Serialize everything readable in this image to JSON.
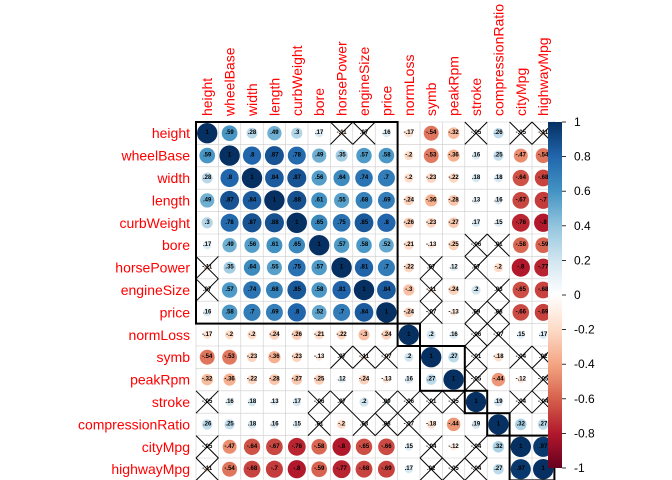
{
  "chart_data": {
    "type": "heatmap",
    "variables": [
      "height",
      "wheelBase",
      "width",
      "length",
      "curbWeight",
      "bore",
      "horsePower",
      "engineSize",
      "price",
      "normLoss",
      "symb",
      "peakRpm",
      "stroke",
      "compressionRatio",
      "cityMpg",
      "highwayMpg"
    ],
    "matrix": [
      [
        1,
        0.59,
        0.28,
        0.49,
        0.3,
        0.17,
        -0.11,
        0.07,
        0.16,
        -0.17,
        -0.54,
        -0.32,
        -0.05,
        0.26,
        -0.05,
        -0.11
      ],
      [
        0.59,
        1,
        0.8,
        0.87,
        0.78,
        0.49,
        0.35,
        0.57,
        0.58,
        -0.2,
        -0.53,
        -0.36,
        0.16,
        0.25,
        -0.47,
        -0.54
      ],
      [
        0.28,
        0.8,
        1,
        0.84,
        0.87,
        0.56,
        0.64,
        0.74,
        0.7,
        -0.2,
        -0.23,
        -0.22,
        0.18,
        0.18,
        -0.64,
        -0.68
      ],
      [
        0.49,
        0.87,
        0.84,
        1,
        0.88,
        0.61,
        0.55,
        0.68,
        0.69,
        -0.24,
        -0.36,
        -0.28,
        0.13,
        0.16,
        -0.67,
        -0.7
      ],
      [
        0.3,
        0.78,
        0.87,
        0.88,
        1,
        0.65,
        0.75,
        0.85,
        0.8,
        -0.26,
        -0.23,
        -0.27,
        0.17,
        0.15,
        -0.76,
        -0.8
      ],
      [
        0.17,
        0.49,
        0.56,
        0.61,
        0.65,
        1,
        0.57,
        0.58,
        0.52,
        -0.21,
        -0.13,
        -0.25,
        -0.06,
        0.01,
        -0.58,
        -0.59
      ],
      [
        -0.11,
        0.35,
        0.64,
        0.55,
        0.75,
        0.57,
        1,
        0.81,
        0.7,
        -0.22,
        0.07,
        0.12,
        0.07,
        -0.2,
        -0.8,
        -0.77
      ],
      [
        0.07,
        0.57,
        0.74,
        0.68,
        0.85,
        0.58,
        0.81,
        1,
        0.84,
        -0.3,
        -0.11,
        -0.24,
        0.2,
        0.03,
        -0.65,
        -0.68
      ],
      [
        0.16,
        0.58,
        0.7,
        0.69,
        0.8,
        0.52,
        0.7,
        0.84,
        1,
        -0.24,
        -0.07,
        -0.13,
        0.09,
        0.08,
        -0.66,
        -0.69
      ],
      [
        -0.17,
        -0.2,
        -0.2,
        -0.24,
        -0.26,
        -0.21,
        -0.22,
        -0.3,
        -0.24,
        1,
        0.2,
        0.16,
        -0.06,
        -0.07,
        0.15,
        0.17
      ],
      [
        -0.54,
        -0.53,
        -0.23,
        -0.36,
        -0.23,
        -0.13,
        0.07,
        -0.11,
        -0.07,
        0.2,
        1,
        0.27,
        -0.01,
        -0.18,
        -0.04,
        0.02
      ],
      [
        -0.32,
        -0.36,
        -0.22,
        -0.28,
        -0.27,
        -0.25,
        0.12,
        -0.24,
        -0.13,
        0.16,
        0.27,
        1,
        -0.05,
        -0.44,
        -0.12,
        -0.05
      ],
      [
        -0.05,
        0.16,
        0.18,
        0.13,
        0.17,
        -0.06,
        0.07,
        0.2,
        0.09,
        -0.06,
        -0.01,
        -0.05,
        1,
        0.19,
        -0.04,
        -0.04
      ],
      [
        0.26,
        0.25,
        0.18,
        0.16,
        0.15,
        0.01,
        -0.2,
        0.03,
        0.08,
        -0.07,
        -0.18,
        -0.44,
        0.19,
        1,
        0.32,
        0.27
      ],
      [
        -0.05,
        -0.47,
        -0.64,
        -0.67,
        -0.76,
        -0.58,
        -0.8,
        -0.65,
        -0.66,
        0.15,
        -0.04,
        -0.12,
        -0.04,
        0.32,
        1,
        0.97
      ],
      [
        -0.11,
        -0.54,
        -0.68,
        -0.7,
        -0.8,
        -0.59,
        -0.77,
        -0.68,
        -0.69,
        0.17,
        0.02,
        -0.05,
        -0.04,
        0.27,
        0.97,
        1
      ]
    ],
    "crossed_cells": [
      [
        0,
        6
      ],
      [
        0,
        7
      ],
      [
        0,
        12
      ],
      [
        0,
        14
      ],
      [
        0,
        15
      ],
      [
        5,
        12
      ],
      [
        5,
        13
      ],
      [
        6,
        10
      ],
      [
        6,
        12
      ],
      [
        7,
        10
      ],
      [
        7,
        13
      ],
      [
        8,
        10
      ],
      [
        8,
        12
      ],
      [
        8,
        13
      ],
      [
        9,
        12
      ],
      [
        9,
        13
      ],
      [
        10,
        12
      ],
      [
        10,
        14
      ],
      [
        10,
        15
      ],
      [
        11,
        12
      ],
      [
        11,
        15
      ],
      [
        12,
        14
      ],
      [
        12,
        15
      ]
    ],
    "clusters": [
      [
        0,
        8
      ],
      [
        9,
        9
      ],
      [
        10,
        11
      ],
      [
        12,
        12
      ],
      [
        13,
        13
      ],
      [
        14,
        15
      ]
    ],
    "colorbar_ticks": [
      "1",
      "0.8",
      "0.6",
      "0.4",
      "0.2",
      "0",
      "-0.2",
      "-0.4",
      "-0.6",
      "-0.8",
      "-1"
    ],
    "colorbar_range": [
      -1,
      1
    ],
    "colors": {
      "label": "#ff0000",
      "grid": "#cccccc",
      "cluster_border": "#000000",
      "negative_strong": "#67001f",
      "neutral": "#ffffff",
      "positive_strong": "#053061"
    }
  }
}
